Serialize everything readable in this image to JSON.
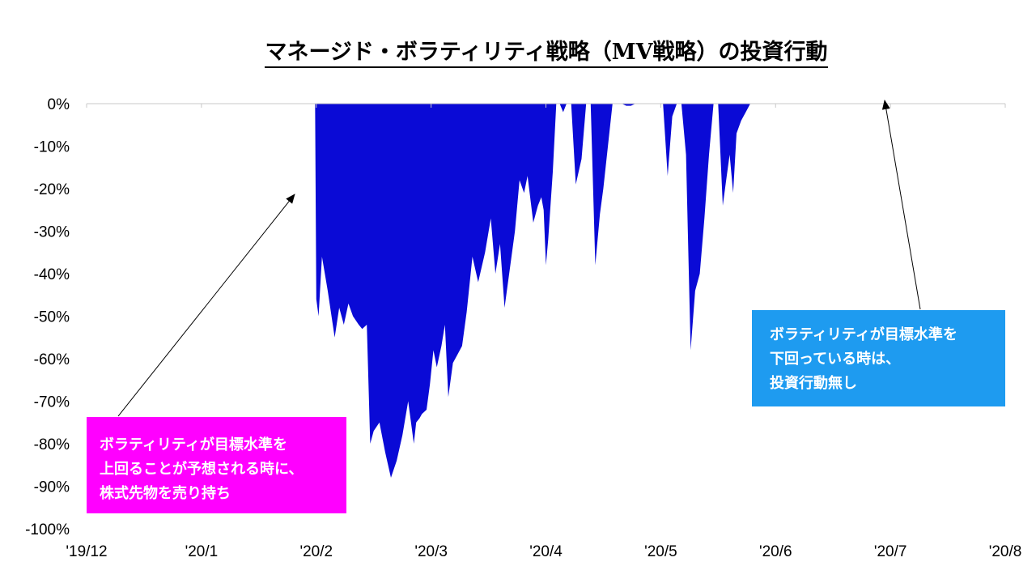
{
  "chart_data": {
    "type": "area",
    "title": "マネージド・ボラティリティ戦略（MV戦略）の投資行動",
    "xlabel": "",
    "ylabel": "",
    "ylim": [
      -100,
      0
    ],
    "yticks": [
      0,
      -10,
      -20,
      -30,
      -40,
      -50,
      -60,
      -70,
      -80,
      -90,
      -100
    ],
    "ytick_labels": [
      "0%",
      "-10%",
      "-20%",
      "-30%",
      "-40%",
      "-50%",
      "-60%",
      "-70%",
      "-80%",
      "-90%",
      "-100%"
    ],
    "xtick_labels": [
      "'19/12",
      "'20/1",
      "'20/2",
      "'20/3",
      "'20/4",
      "'20/5",
      "'20/6",
      "'20/7",
      "'20/8"
    ],
    "xlim": [
      0,
      8
    ],
    "grid": false,
    "series": [
      {
        "color": "#0a0ad6",
        "x": [
          0,
          1.99,
          2.0,
          2.02,
          2.05,
          2.1,
          2.16,
          2.2,
          2.24,
          2.28,
          2.32,
          2.37,
          2.4,
          2.44,
          2.47,
          2.5,
          2.55,
          2.6,
          2.65,
          2.7,
          2.75,
          2.8,
          2.85,
          2.87,
          2.9,
          2.92,
          2.96,
          2.99,
          3.02,
          3.05,
          3.09,
          3.12,
          3.15,
          3.19,
          3.23,
          3.27,
          3.31,
          3.36,
          3.41,
          3.47,
          3.52,
          3.56,
          3.6,
          3.64,
          3.68,
          3.73,
          3.77,
          3.81,
          3.84,
          3.89,
          3.93,
          3.96,
          3.98,
          4.0,
          4.02,
          4.06,
          4.09,
          4.12,
          4.15,
          4.18,
          4.22,
          4.26,
          4.31,
          4.35,
          4.39,
          4.43,
          4.47,
          4.5,
          4.54,
          4.58,
          4.62,
          4.66,
          4.7,
          4.74,
          4.78,
          4.82,
          4.86,
          4.9,
          4.94,
          4.98,
          5.02,
          5.06,
          5.1,
          5.14,
          5.18,
          5.22,
          5.26,
          5.3,
          5.34,
          5.38,
          5.42,
          5.46,
          5.5,
          5.54,
          5.57,
          5.6,
          5.63,
          5.66,
          5.7,
          5.74,
          5.78,
          5.82,
          5.86,
          5.9,
          5.94,
          5.98,
          6.02,
          6.06,
          6.1,
          6.14,
          6.18,
          6.22,
          6.26,
          6.3,
          6.34,
          6.38,
          8
        ],
        "y": [
          0,
          0,
          -46,
          -50,
          -36,
          -44,
          -55,
          -48,
          -52,
          -47,
          -50,
          -52,
          -53,
          -52,
          -80,
          -77,
          -75,
          -82,
          -88,
          -84,
          -78,
          -70,
          -80,
          -75,
          -74,
          -73,
          -72,
          -66,
          -58,
          -62,
          -57,
          -52,
          -69,
          -61,
          -59,
          -57,
          -49,
          -36,
          -42,
          -35,
          -27,
          -40,
          -33,
          -48,
          -40,
          -30,
          -18,
          -21,
          -17,
          -28,
          -24,
          -22,
          -25,
          -38,
          -32,
          -16,
          0,
          0,
          -2,
          0,
          0,
          -19,
          -13,
          0,
          0,
          -38,
          -26,
          -20,
          -10,
          0,
          0,
          0,
          -0.5,
          -0.5,
          0,
          0,
          0,
          0,
          0,
          0,
          0,
          -17,
          -3,
          0,
          0,
          -12,
          -58,
          -44,
          -40,
          -27,
          -12,
          0,
          0,
          -24,
          -18,
          -12,
          -21,
          -7,
          -4,
          -2,
          0,
          0,
          0,
          0,
          0,
          0,
          0,
          0,
          0,
          0,
          0,
          0,
          0,
          0,
          0,
          0,
          0
        ]
      }
    ]
  },
  "callouts": {
    "short": {
      "color": "#ff00ff",
      "lines": [
        "ボラティリティが目標水準を",
        "上回ることが予想される時に、",
        "株式先物を売り持ち"
      ]
    },
    "none": {
      "color": "#1e9bf0",
      "lines": [
        "ボラティリティが目標水準を",
        "下回っている時は、",
        "投資行動無し"
      ]
    }
  }
}
